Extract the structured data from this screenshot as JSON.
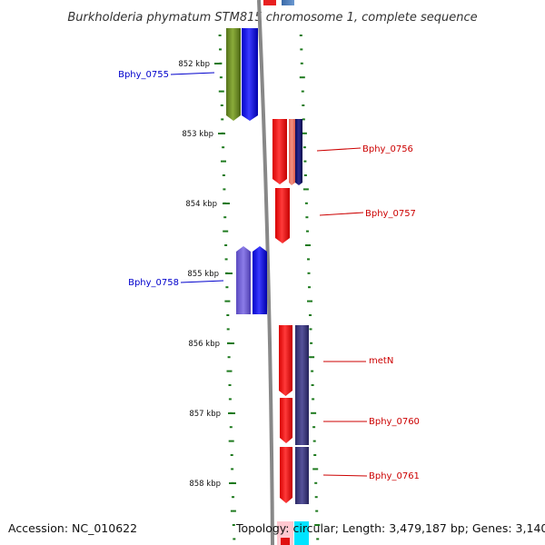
{
  "title": "Burkholderia phymatum STM815 chromosome 1, complete sequence",
  "accession": "Accession: NC_010622",
  "topology": "Topology: circular; Length: 3,479,187 bp; Genes: 3,140",
  "colors": {
    "forward_label": "#0000cc",
    "reverse_label": "#cc0000",
    "backbone": "#888888",
    "ticks": "#1e7a1e"
  },
  "scale": {
    "labels": [
      "852 kbp",
      "853 kbp",
      "854 kbp",
      "855 kbp",
      "856 kbp",
      "857 kbp",
      "858 kbp"
    ]
  },
  "gene_labels": {
    "forward": [
      "Bphy_0755",
      "Bphy_0758"
    ],
    "reverse": [
      "Bphy_0756",
      "Bphy_0757",
      "metN",
      "Bphy_0760",
      "Bphy_0761"
    ]
  }
}
